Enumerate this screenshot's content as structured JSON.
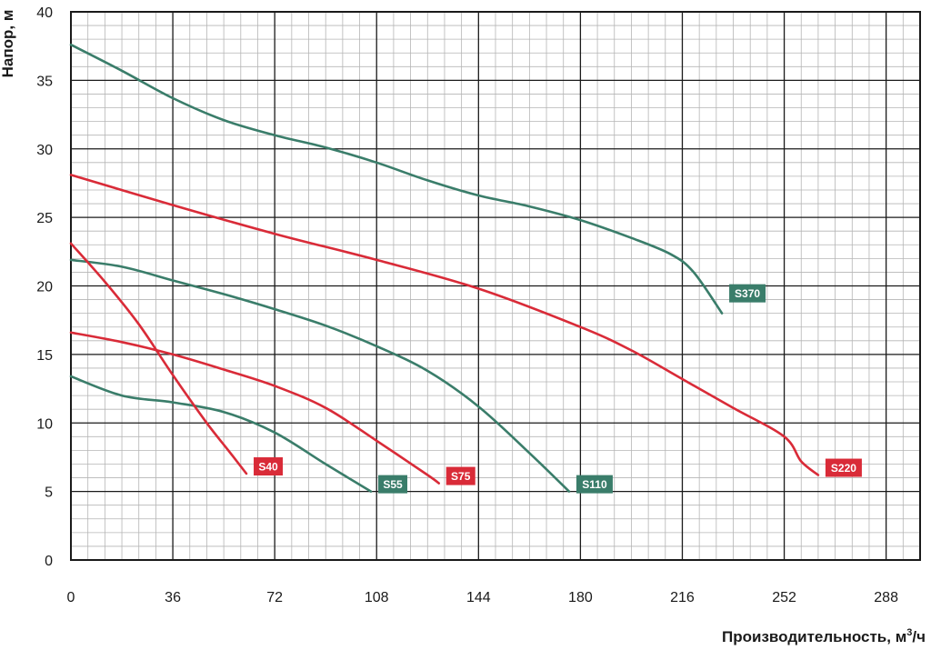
{
  "chart_data": {
    "type": "line",
    "xlabel": "Производительность, м³/ч",
    "ylabel": "Напор, м",
    "xlim": [
      0,
      300
    ],
    "ylim": [
      0,
      40
    ],
    "x_ticks": [
      "0",
      "36",
      "72",
      "108",
      "144",
      "180",
      "216",
      "252",
      "288"
    ],
    "y_ticks": [
      "0",
      "5",
      "10",
      "15",
      "20",
      "25",
      "30",
      "35",
      "40"
    ],
    "grid": true,
    "minor_grid": true,
    "legend": "labels at curve ends",
    "colors": {
      "green": "#3a7d6a",
      "red": "#d92b38",
      "grid_major": "#1a1a1a",
      "grid_minor": "#b5b5b5"
    },
    "series": [
      {
        "name": "S370",
        "color": "#3a7d6a",
        "x": [
          0,
          18,
          36,
          54,
          72,
          90,
          108,
          126,
          144,
          162,
          180,
          198,
          212,
          220,
          230
        ],
        "y": [
          37.6,
          35.7,
          33.7,
          32.1,
          31.0,
          30.1,
          29.0,
          27.7,
          26.6,
          25.8,
          24.8,
          23.5,
          22.3,
          21.0,
          18.0
        ]
      },
      {
        "name": "S220",
        "color": "#d92b38",
        "x": [
          0,
          36,
          72,
          108,
          144,
          180,
          198,
          216,
          234,
          252,
          258,
          264
        ],
        "y": [
          28.1,
          25.9,
          23.8,
          21.9,
          19.8,
          17.0,
          15.3,
          13.2,
          11.1,
          9.0,
          7.2,
          6.2
        ]
      },
      {
        "name": "S110",
        "color": "#3a7d6a",
        "x": [
          0,
          18,
          36,
          54,
          72,
          90,
          108,
          126,
          144,
          162,
          176
        ],
        "y": [
          21.9,
          21.4,
          20.4,
          19.4,
          18.3,
          17.1,
          15.6,
          13.8,
          11.2,
          7.8,
          5.0
        ]
      },
      {
        "name": "S75",
        "color": "#d92b38",
        "x": [
          0,
          18,
          36,
          54,
          72,
          90,
          108,
          126,
          130
        ],
        "y": [
          16.6,
          15.9,
          15.0,
          13.9,
          12.7,
          11.1,
          8.7,
          6.2,
          5.6
        ]
      },
      {
        "name": "S55",
        "color": "#3a7d6a",
        "x": [
          0,
          18,
          36,
          54,
          72,
          90,
          106
        ],
        "y": [
          13.4,
          12.0,
          11.5,
          10.8,
          9.3,
          7.0,
          5.0
        ]
      },
      {
        "name": "S40",
        "color": "#d92b38",
        "x": [
          0,
          12,
          24,
          36,
          48,
          56,
          62
        ],
        "y": [
          23.1,
          20.3,
          17.2,
          13.5,
          10.0,
          7.9,
          6.3
        ]
      }
    ]
  }
}
